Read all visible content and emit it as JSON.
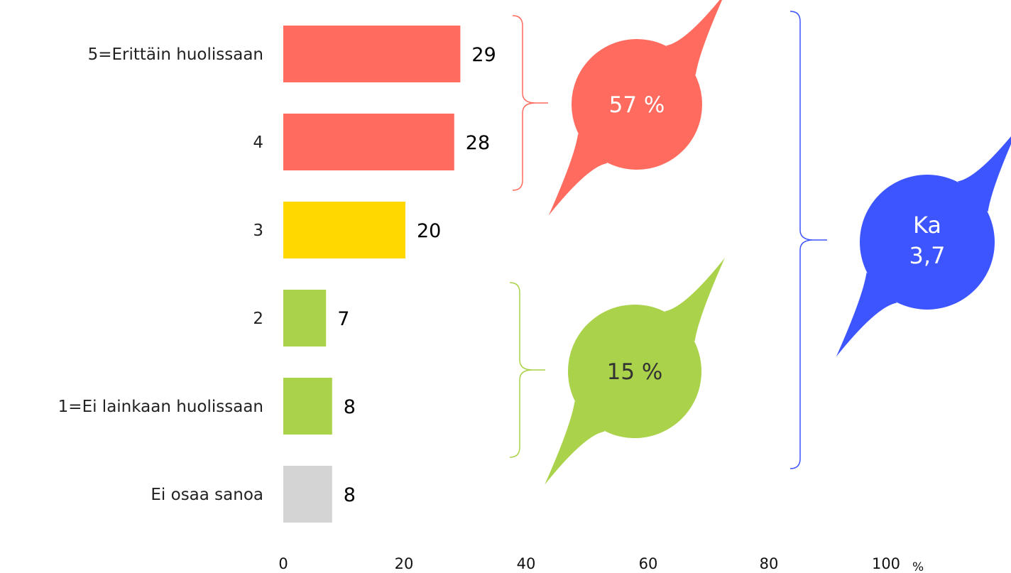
{
  "chart_data": {
    "type": "bar",
    "orientation": "horizontal",
    "categories": [
      "5=Erittäin huolissaan",
      "4",
      "3",
      "2",
      "1=Ei lainkaan huolissaan",
      "Ei osaa sanoa"
    ],
    "values": [
      29,
      28,
      20,
      7,
      8,
      8
    ],
    "value_labels": [
      "29",
      "28",
      "20",
      "7",
      "8",
      "8"
    ],
    "bar_colors": [
      "#ff6b5e",
      "#ff6b5e",
      "#ffd800",
      "#aad24a",
      "#aad24a",
      "#d4d4d4"
    ],
    "xlim": [
      0,
      100
    ],
    "x_ticks": [
      "0",
      "20",
      "40",
      "60",
      "80",
      "100"
    ],
    "x_unit": "%",
    "grid": false,
    "legend": "none",
    "annotations": [
      {
        "text": "57 %",
        "groups": [
          "5=Erittäin huolissaan",
          "4"
        ],
        "color": "#ff6b5e",
        "text_color": "#ffffff"
      },
      {
        "text": "15 %",
        "groups": [
          "2",
          "1=Ei lainkaan huolissaan"
        ],
        "color": "#aad24a",
        "text_color": "#333333"
      },
      {
        "text_lines": [
          "Ka",
          "3,7"
        ],
        "groups": [
          "5=Erittäin huolissaan",
          "4",
          "3",
          "2",
          "1=Ei lainkaan huolissaan"
        ],
        "color": "#3d55ff",
        "text_color": "#ffffff"
      }
    ]
  }
}
